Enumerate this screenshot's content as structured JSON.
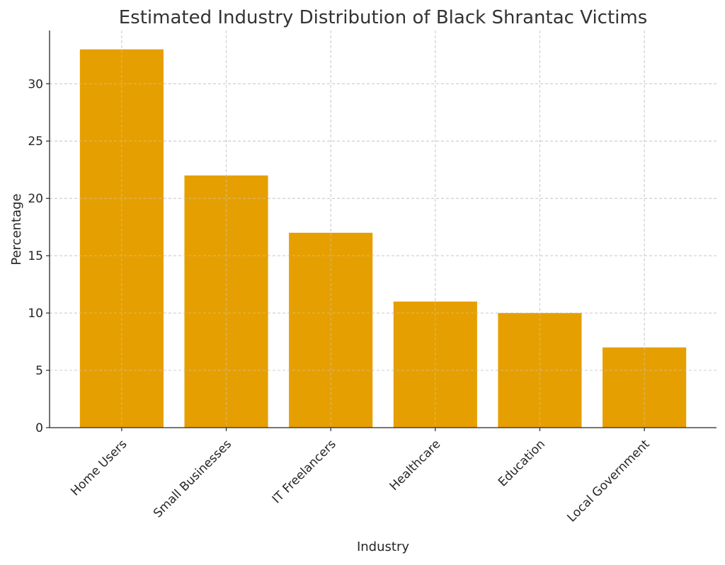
{
  "chart_data": {
    "type": "bar",
    "title": "Estimated Industry Distribution of Black Shrantac Victims",
    "xlabel": "Industry",
    "ylabel": "Percentage",
    "categories": [
      "Home Users",
      "Small Businesses",
      "IT Freelancers",
      "Healthcare",
      "Education",
      "Local Government"
    ],
    "values": [
      33,
      22,
      17,
      11,
      10,
      7
    ],
    "ylim": [
      0,
      34.65
    ],
    "yticks": [
      0,
      5,
      10,
      15,
      20,
      25,
      30
    ],
    "grid": true,
    "bar_color": "#E69F00"
  }
}
